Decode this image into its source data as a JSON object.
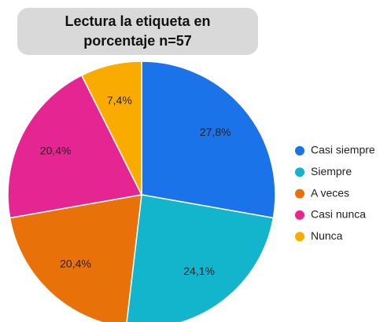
{
  "chart_data": {
    "type": "pie",
    "title": "Lectura la etiqueta en porcentaje n=57",
    "categories": [
      "Casi siempre",
      "Siempre",
      "A veces",
      "Casi nunca",
      "Nunca"
    ],
    "values": [
      27.8,
      24.1,
      20.4,
      20.4,
      7.4
    ],
    "value_labels": [
      "27,8%",
      "24,1%",
      "20,4%",
      "20,4%",
      "7,4%"
    ],
    "colors": [
      "#1a73e8",
      "#12b5cb",
      "#e8710a",
      "#e52592",
      "#f9ab00"
    ],
    "legend": "right"
  }
}
